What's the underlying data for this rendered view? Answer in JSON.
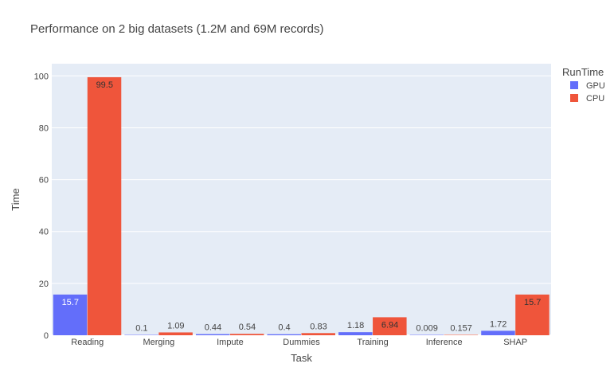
{
  "chart_data": {
    "type": "bar",
    "title": "Performance on 2 big datasets (1.2M and 69M records)",
    "xlabel": "Task",
    "ylabel": "Time",
    "categories": [
      "Reading",
      "Merging",
      "Impute",
      "Dummies",
      "Training",
      "Inference",
      "SHAP"
    ],
    "series": [
      {
        "name": "GPU",
        "color": "#636efa",
        "values": [
          15.7,
          0.1,
          0.44,
          0.4,
          1.18,
          0.009,
          1.72
        ],
        "labels": [
          "15.7",
          "0.1",
          "0.44",
          "0.4",
          "1.18",
          "0.009",
          "1.72"
        ]
      },
      {
        "name": "CPU",
        "color": "#ef553b",
        "values": [
          99.5,
          1.09,
          0.54,
          0.83,
          6.94,
          0.157,
          15.7
        ],
        "labels": [
          "99.5",
          "1.09",
          "0.54",
          "0.83",
          "6.94",
          "0.157",
          "15.7"
        ]
      }
    ],
    "ylim": [
      0,
      104.7
    ],
    "yticks": [
      0,
      20,
      40,
      60,
      80,
      100
    ],
    "legend_title": "RunTime",
    "legend_position": "top-right",
    "grid": true,
    "plot_bgcolor": "#e5ecf6"
  }
}
